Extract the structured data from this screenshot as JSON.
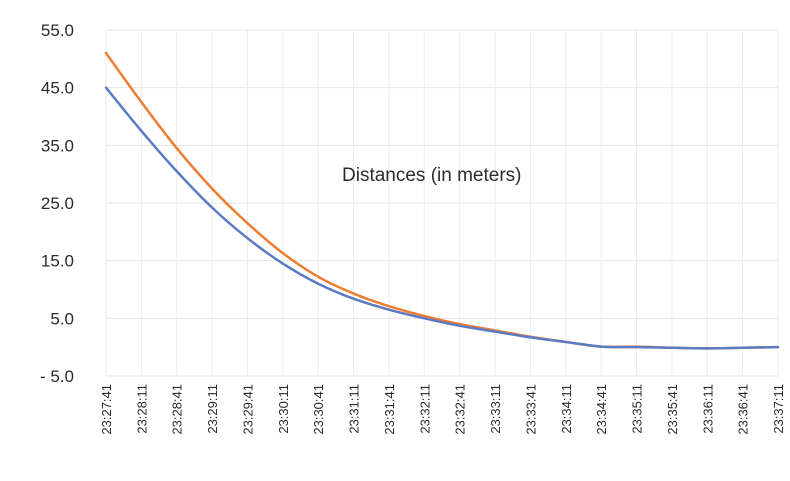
{
  "chart_data": {
    "type": "line",
    "title": "",
    "xlabel": "",
    "ylabel": "",
    "annotation": "Distances (in meters)",
    "ylim": [
      -5,
      55
    ],
    "y_ticks": [
      "55.0",
      "45.0",
      "35.0",
      "25.0",
      "15.0",
      "5.0",
      "- 5.0"
    ],
    "y_tick_values": [
      55,
      45,
      35,
      25,
      15,
      5,
      -5
    ],
    "categories": [
      "23:27:41",
      "23:28:11",
      "23:28:41",
      "23:29:11",
      "23:29:41",
      "23:30:11",
      "23:30:41",
      "23:31:11",
      "23:31:41",
      "23:32:11",
      "23:32:41",
      "23:33:11",
      "23:33:41",
      "23:34:11",
      "23:34:41",
      "23:35:11",
      "23:35:41",
      "23:36:11",
      "23:36:41",
      "23:37:11"
    ],
    "grid": true,
    "legend": "none",
    "series": [
      {
        "color": "#ED7D31",
        "values": [
          51.0,
          42.5,
          34.5,
          27.5,
          21.5,
          16.3,
          12.2,
          9.3,
          7.1,
          5.4,
          4.0,
          2.9,
          1.8,
          0.9,
          0.1,
          0.1,
          -0.1,
          -0.2,
          -0.1,
          0.0
        ]
      },
      {
        "color": "#5B7BC4",
        "values": [
          45.0,
          37.5,
          30.5,
          24.2,
          18.9,
          14.5,
          11.0,
          8.4,
          6.5,
          5.0,
          3.7,
          2.7,
          1.7,
          0.9,
          0.1,
          0.0,
          -0.1,
          -0.2,
          -0.1,
          0.0
        ]
      }
    ]
  }
}
